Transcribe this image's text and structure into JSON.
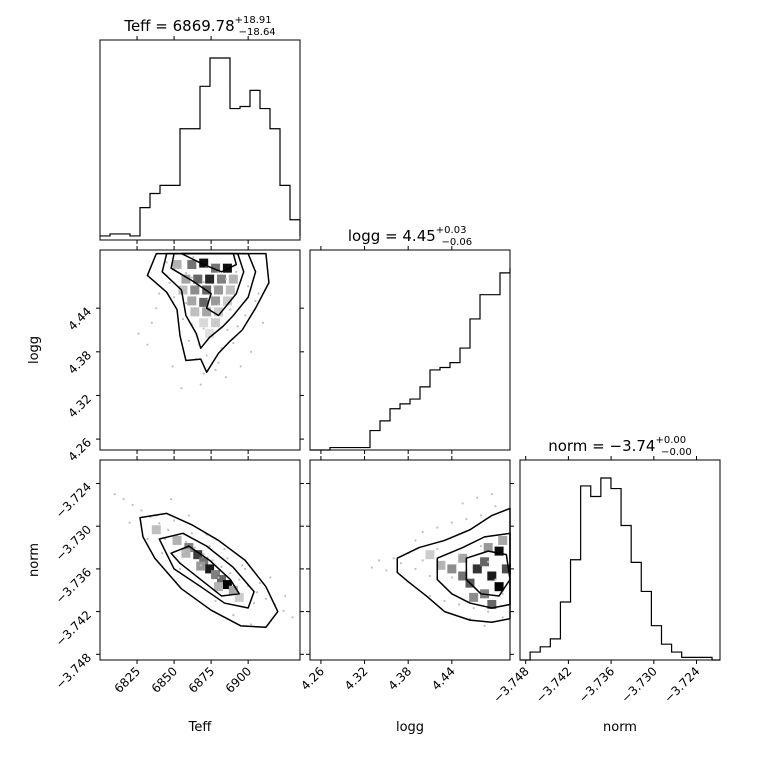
{
  "chart_data": {
    "type": "corner",
    "parameters": [
      "Teff",
      "logg",
      "norm"
    ],
    "ranges": {
      "Teff": [
        6800,
        6935
      ],
      "logg": [
        4.245,
        4.52
      ],
      "norm": [
        -3.7488,
        -3.7207
      ]
    },
    "ticks": {
      "Teff": [
        "6825",
        "6850",
        "6875",
        "6900"
      ],
      "logg": [
        "4.26",
        "4.32",
        "4.38",
        "4.44"
      ],
      "norm": [
        "−3.748",
        "−3.742",
        "−3.736",
        "−3.730",
        "−3.724"
      ]
    },
    "tick_values": {
      "Teff": [
        6825,
        6850,
        6875,
        6900
      ],
      "logg": [
        4.26,
        4.32,
        4.38,
        4.44
      ],
      "norm": [
        -3.748,
        -3.742,
        -3.736,
        -3.73,
        -3.724
      ]
    },
    "titles": {
      "Teff": {
        "label": "Teff = 6869.78",
        "sup": "+18.91",
        "sub": "−18.64"
      },
      "logg": {
        "label": "logg = 4.45",
        "sup": "+0.03",
        "sub": "−0.06"
      },
      "norm": {
        "label": "norm = −3.74",
        "sup": "+0.00",
        "sub": "−0.00"
      }
    },
    "histograms": {
      "Teff": {
        "x0": 6800,
        "width": 6.75,
        "counts": [
          2,
          3,
          3,
          2,
          16,
          23,
          27,
          27,
          55,
          55,
          76,
          90,
          90,
          65,
          66,
          74,
          65,
          55,
          27,
          10,
          7,
          2
        ]
      },
      "logg": {
        "x0": 4.245,
        "width": 0.01375,
        "counts": [
          0,
          0,
          1,
          1,
          1,
          1,
          8,
          12,
          17,
          19,
          21,
          26,
          33,
          34,
          36,
          42,
          54,
          64,
          64,
          73,
          73,
          75
        ]
      },
      "norm": {
        "x0": -3.7488,
        "width": 0.00142,
        "counts": [
          0,
          3,
          5,
          8,
          22,
          38,
          66,
          62,
          69,
          65,
          51,
          37,
          26,
          13,
          6,
          3,
          1,
          1,
          1,
          0
        ]
      }
    },
    "scatter_logg_vs_Teff": [
      [
        6845,
        4.503
      ],
      [
        6852,
        4.495
      ],
      [
        6858,
        4.488
      ],
      [
        6865,
        4.505
      ],
      [
        6872,
        4.498
      ],
      [
        6880,
        4.49
      ],
      [
        6847,
        4.475
      ],
      [
        6855,
        4.468
      ],
      [
        6862,
        4.482
      ],
      [
        6870,
        4.476
      ],
      [
        6877,
        4.47
      ],
      [
        6885,
        4.48
      ],
      [
        6850,
        4.455
      ],
      [
        6858,
        4.447
      ],
      [
        6864,
        4.44
      ],
      [
        6873,
        4.452
      ],
      [
        6880,
        4.445
      ],
      [
        6888,
        4.438
      ],
      [
        6856,
        4.425
      ],
      [
        6862,
        4.418
      ],
      [
        6870,
        4.412
      ],
      [
        6878,
        4.42
      ],
      [
        6886,
        4.41
      ],
      [
        6893,
        4.415
      ],
      [
        6860,
        4.395
      ],
      [
        6867,
        4.39
      ],
      [
        6874,
        4.4
      ],
      [
        6882,
        4.385
      ],
      [
        6890,
        4.392
      ],
      [
        6865,
        4.37
      ],
      [
        6872,
        4.375
      ],
      [
        6880,
        4.365
      ],
      [
        6870,
        4.35
      ],
      [
        6878,
        4.355
      ],
      [
        6885,
        4.345
      ],
      [
        6868,
        4.335
      ],
      [
        6840,
        4.46
      ],
      [
        6838,
        4.44
      ],
      [
        6835,
        4.42
      ],
      [
        6900,
        4.47
      ],
      [
        6905,
        4.45
      ],
      [
        6898,
        4.43
      ],
      [
        6832,
        4.39
      ],
      [
        6895,
        4.36
      ],
      [
        6855,
        4.33
      ],
      [
        6910,
        4.42
      ],
      [
        6826,
        4.405
      ],
      [
        6902,
        4.38
      ],
      [
        6849,
        4.36
      ],
      [
        6892,
        4.49
      ],
      [
        6863,
        4.51
      ],
      [
        6876,
        4.515
      ],
      [
        6845,
        4.485
      ],
      [
        6907,
        4.46
      ]
    ],
    "scatter_norm_vs_Teff": [
      [
        6810,
        -3.7255
      ],
      [
        6816,
        -3.7262
      ],
      [
        6822,
        -3.727
      ],
      [
        6828,
        -3.7278
      ],
      [
        6834,
        -3.7287
      ],
      [
        6840,
        -3.7296
      ],
      [
        6846,
        -3.7305
      ],
      [
        6852,
        -3.7313
      ],
      [
        6858,
        -3.7322
      ],
      [
        6864,
        -3.733
      ],
      [
        6870,
        -3.7339
      ],
      [
        6876,
        -3.7348
      ],
      [
        6882,
        -3.7357
      ],
      [
        6888,
        -3.7366
      ],
      [
        6894,
        -3.7375
      ],
      [
        6900,
        -3.7384
      ],
      [
        6906,
        -3.7393
      ],
      [
        6912,
        -3.7402
      ],
      [
        6918,
        -3.741
      ],
      [
        6924,
        -3.7419
      ],
      [
        6930,
        -3.7428
      ],
      [
        6838,
        -3.7285
      ],
      [
        6844,
        -3.7318
      ],
      [
        6850,
        -3.7292
      ],
      [
        6856,
        -3.7336
      ],
      [
        6862,
        -3.731
      ],
      [
        6868,
        -3.7355
      ],
      [
        6874,
        -3.7328
      ],
      [
        6880,
        -3.7372
      ],
      [
        6886,
        -3.7345
      ],
      [
        6892,
        -3.739
      ],
      [
        6898,
        -3.736
      ],
      [
        6904,
        -3.7408
      ],
      [
        6848,
        -3.7262
      ],
      [
        6860,
        -3.7285
      ],
      [
        6872,
        -3.7312
      ],
      [
        6884,
        -3.7332
      ],
      [
        6896,
        -3.7355
      ],
      [
        6908,
        -3.738
      ],
      [
        6842,
        -3.7338
      ],
      [
        6854,
        -3.736
      ],
      [
        6866,
        -3.7382
      ],
      [
        6878,
        -3.7405
      ],
      [
        6890,
        -3.7425
      ],
      [
        6902,
        -3.7438
      ],
      [
        6820,
        -3.7295
      ],
      [
        6832,
        -3.7318
      ],
      [
        6915,
        -3.7372
      ],
      [
        6925,
        -3.7398
      ]
    ],
    "scatter_norm_vs_logg": [
      [
        4.36,
        -3.7345
      ],
      [
        4.37,
        -3.7352
      ],
      [
        4.38,
        -3.7338
      ],
      [
        4.39,
        -3.736
      ],
      [
        4.4,
        -3.7348
      ],
      [
        4.41,
        -3.737
      ],
      [
        4.42,
        -3.7332
      ],
      [
        4.43,
        -3.7355
      ],
      [
        4.44,
        -3.7372
      ],
      [
        4.45,
        -3.734
      ],
      [
        4.46,
        -3.7362
      ],
      [
        4.47,
        -3.7385
      ],
      [
        4.48,
        -3.7328
      ],
      [
        4.49,
        -3.735
      ],
      [
        4.5,
        -3.7375
      ],
      [
        4.51,
        -3.7395
      ],
      [
        4.52,
        -3.7318
      ],
      [
        4.4,
        -3.7308
      ],
      [
        4.42,
        -3.7302
      ],
      [
        4.44,
        -3.7295
      ],
      [
        4.46,
        -3.729
      ],
      [
        4.48,
        -3.7285
      ],
      [
        4.5,
        -3.7272
      ],
      [
        4.41,
        -3.7398
      ],
      [
        4.43,
        -3.7405
      ],
      [
        4.45,
        -3.741
      ],
      [
        4.47,
        -3.7415
      ],
      [
        4.49,
        -3.742
      ],
      [
        4.51,
        -3.7428
      ],
      [
        4.35,
        -3.7362
      ],
      [
        4.34,
        -3.7348
      ],
      [
        4.33,
        -3.7358
      ],
      [
        4.38,
        -3.7378
      ],
      [
        4.39,
        -3.732
      ],
      [
        4.455,
        -3.7268
      ],
      [
        4.475,
        -3.726
      ],
      [
        4.495,
        -3.7255
      ],
      [
        4.465,
        -3.743
      ],
      [
        4.485,
        -3.744
      ]
    ],
    "heatmap_logg_vs_Teff": [
      [
        6852,
        4.5,
        0.3
      ],
      [
        6862,
        4.5,
        0.55
      ],
      [
        6870,
        4.502,
        0.95
      ],
      [
        6878,
        4.495,
        0.55
      ],
      [
        6886,
        4.495,
        0.95
      ],
      [
        6858,
        4.48,
        0.35
      ],
      [
        6866,
        4.48,
        0.6
      ],
      [
        6874,
        4.48,
        0.85
      ],
      [
        6882,
        4.48,
        0.5
      ],
      [
        6890,
        4.48,
        0.3
      ],
      [
        6856,
        4.465,
        0.25
      ],
      [
        6864,
        4.465,
        0.45
      ],
      [
        6872,
        4.465,
        0.6
      ],
      [
        6880,
        4.465,
        0.4
      ],
      [
        6888,
        4.465,
        0.25
      ],
      [
        6862,
        4.45,
        0.35
      ],
      [
        6870,
        4.448,
        0.6
      ],
      [
        6878,
        4.45,
        0.4
      ],
      [
        6886,
        4.45,
        0.2
      ],
      [
        6864,
        4.435,
        0.25
      ],
      [
        6872,
        4.435,
        0.35
      ],
      [
        6880,
        4.435,
        0.2
      ],
      [
        6870,
        4.42,
        0.15
      ],
      [
        6878,
        4.42,
        0.2
      ],
      [
        6874,
        4.405,
        0.12
      ]
    ],
    "heatmap_norm_vs_Teff": [
      [
        6838,
        -3.7305,
        0.25
      ],
      [
        6852,
        -3.732,
        0.3
      ],
      [
        6860,
        -3.733,
        0.5
      ],
      [
        6866,
        -3.734,
        0.75
      ],
      [
        6870,
        -3.735,
        0.55
      ],
      [
        6874,
        -3.736,
        0.9
      ],
      [
        6878,
        -3.7368,
        0.5
      ],
      [
        6882,
        -3.7375,
        0.6
      ],
      [
        6886,
        -3.7382,
        1.0
      ],
      [
        6890,
        -3.739,
        0.35
      ],
      [
        6858,
        -3.7338,
        0.3
      ],
      [
        6868,
        -3.7356,
        0.4
      ],
      [
        6880,
        -3.7385,
        0.3
      ],
      [
        6894,
        -3.74,
        0.2
      ]
    ],
    "heatmap_norm_vs_logg": [
      [
        4.41,
        -3.734,
        0.2
      ],
      [
        4.425,
        -3.7355,
        0.3
      ],
      [
        4.44,
        -3.736,
        0.45
      ],
      [
        4.455,
        -3.737,
        0.55
      ],
      [
        4.465,
        -3.738,
        0.65
      ],
      [
        4.475,
        -3.736,
        0.8
      ],
      [
        4.485,
        -3.735,
        0.6
      ],
      [
        4.495,
        -3.737,
        0.9
      ],
      [
        4.505,
        -3.7335,
        0.95
      ],
      [
        4.505,
        -3.7385,
        1.0
      ],
      [
        4.515,
        -3.736,
        0.7
      ],
      [
        4.485,
        -3.7395,
        0.5
      ],
      [
        4.47,
        -3.74,
        0.45
      ],
      [
        4.495,
        -3.741,
        0.6
      ],
      [
        4.455,
        -3.7345,
        0.35
      ],
      [
        4.49,
        -3.733,
        0.4
      ],
      [
        4.51,
        -3.732,
        0.35
      ]
    ],
    "contours_logg_vs_Teff": [
      [
        [
          6855,
          4.515
        ],
        [
          6870,
          4.5
        ],
        [
          6882,
          4.49
        ],
        [
          6892,
          4.5
        ],
        [
          6890,
          4.515
        ]
      ],
      [
        [
          6850,
          4.515
        ],
        [
          6848,
          4.495
        ],
        [
          6862,
          4.478
        ],
        [
          6875,
          4.46
        ],
        [
          6872,
          4.44
        ],
        [
          6880,
          4.43
        ],
        [
          6892,
          4.46
        ],
        [
          6897,
          4.49
        ],
        [
          6893,
          4.515
        ]
      ],
      [
        [
          6845,
          4.515
        ],
        [
          6842,
          4.49
        ],
        [
          6855,
          4.465
        ],
        [
          6858,
          4.43
        ],
        [
          6865,
          4.405
        ],
        [
          6868,
          4.385
        ],
        [
          6874,
          4.4
        ],
        [
          6883,
          4.415
        ],
        [
          6890,
          4.43
        ],
        [
          6900,
          4.455
        ],
        [
          6905,
          4.49
        ],
        [
          6900,
          4.515
        ]
      ],
      [
        [
          6838,
          4.515
        ],
        [
          6832,
          4.485
        ],
        [
          6845,
          4.462
        ],
        [
          6852,
          4.438
        ],
        [
          6854,
          4.402
        ],
        [
          6858,
          4.368
        ],
        [
          6868,
          4.37
        ],
        [
          6872,
          4.352
        ],
        [
          6880,
          4.378
        ],
        [
          6888,
          4.395
        ],
        [
          6896,
          4.41
        ],
        [
          6905,
          4.44
        ],
        [
          6914,
          4.475
        ],
        [
          6912,
          4.515
        ]
      ]
    ],
    "contours_norm_vs_Teff": [
      [
        [
          6848,
          -3.7338
        ],
        [
          6860,
          -3.7328
        ],
        [
          6874,
          -3.7348
        ],
        [
          6888,
          -3.7375
        ],
        [
          6894,
          -3.7395
        ],
        [
          6882,
          -3.7398
        ],
        [
          6868,
          -3.7375
        ],
        [
          6854,
          -3.7352
        ]
      ],
      [
        [
          6840,
          -3.7318
        ],
        [
          6856,
          -3.731
        ],
        [
          6872,
          -3.7328
        ],
        [
          6890,
          -3.7358
        ],
        [
          6904,
          -3.7392
        ],
        [
          6900,
          -3.7415
        ],
        [
          6884,
          -3.7408
        ],
        [
          6868,
          -3.7385
        ],
        [
          6850,
          -3.736
        ]
      ],
      [
        [
          6827,
          -3.7288
        ],
        [
          6845,
          -3.7282
        ],
        [
          6862,
          -3.7298
        ],
        [
          6880,
          -3.732
        ],
        [
          6898,
          -3.7348
        ],
        [
          6912,
          -3.7385
        ],
        [
          6920,
          -3.742
        ],
        [
          6912,
          -3.7442
        ],
        [
          6895,
          -3.744
        ],
        [
          6875,
          -3.7418
        ],
        [
          6855,
          -3.7388
        ],
        [
          6837,
          -3.7345
        ],
        [
          6829,
          -3.7315
        ]
      ]
    ],
    "contours_norm_vs_logg": [
      [
        [
          4.46,
          -3.7345
        ],
        [
          4.49,
          -3.7335
        ],
        [
          4.515,
          -3.734
        ],
        [
          4.52,
          -3.7375
        ],
        [
          4.505,
          -3.7398
        ],
        [
          4.48,
          -3.7395
        ],
        [
          4.46,
          -3.7375
        ]
      ],
      [
        [
          4.42,
          -3.7345
        ],
        [
          4.455,
          -3.733
        ],
        [
          4.485,
          -3.7315
        ],
        [
          4.52,
          -3.731
        ],
        [
          4.52,
          -3.741
        ],
        [
          4.495,
          -3.7415
        ],
        [
          4.465,
          -3.7408
        ],
        [
          4.44,
          -3.7395
        ],
        [
          4.42,
          -3.7375
        ]
      ],
      [
        [
          4.365,
          -3.7345
        ],
        [
          4.395,
          -3.733
        ],
        [
          4.43,
          -3.732
        ],
        [
          4.465,
          -3.7305
        ],
        [
          4.495,
          -3.7285
        ],
        [
          4.52,
          -3.7275
        ],
        [
          4.52,
          -3.743
        ],
        [
          4.495,
          -3.7435
        ],
        [
          4.465,
          -3.7432
        ],
        [
          4.43,
          -3.742
        ],
        [
          4.405,
          -3.7398
        ],
        [
          4.38,
          -3.7378
        ],
        [
          4.365,
          -3.7365
        ]
      ]
    ]
  }
}
